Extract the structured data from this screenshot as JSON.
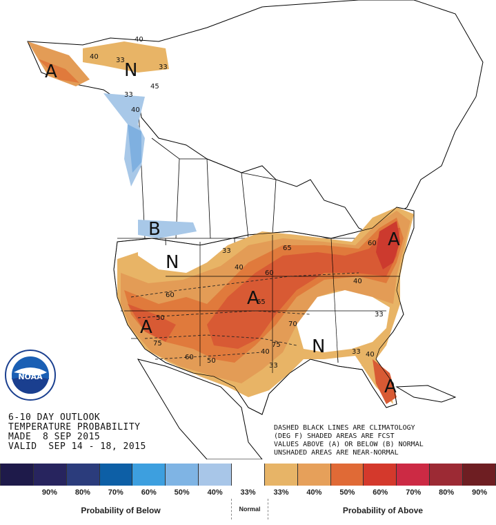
{
  "map": {
    "region_letters": {
      "alaska_above": "A",
      "alaska_normal": "N",
      "northwest_below": "B",
      "northern_plains_normal": "N",
      "southwest_above": "A",
      "central_above": "A",
      "southeast_normal": "N",
      "northeast_above": "A",
      "florida_above": "A"
    },
    "contour_labels": {
      "ak_40a": "40",
      "ak_40b": "40",
      "ak_33a": "33",
      "ak_33b": "33",
      "ak_45": "45",
      "ak_below_33": "33",
      "ak_below_40": "40",
      "plains_33": "33",
      "plains_40": "40",
      "plains_60": "60",
      "ne_65": "65",
      "ne_60": "60",
      "ne_40": "40",
      "sw_50": "50",
      "sw_60": "60",
      "sw_50b": "50",
      "c_65": "65",
      "c_70": "70",
      "c_75": "75",
      "c_40": "40",
      "se_33": "33",
      "se_33b": "33",
      "se_40": "40",
      "tx_33": "33",
      "clim_60": "60",
      "clim_75": "75"
    },
    "colors": {
      "above_33": "#e8b466",
      "above_40": "#e39c56",
      "above_50": "#e07a3c",
      "above_60": "#d85a34",
      "above_70": "#cc3a2e",
      "below_33": "#a8c8e8",
      "below_40": "#7fb0e0"
    }
  },
  "outlook": {
    "line1": "6-10 DAY OUTLOOK",
    "line2": "TEMPERATURE PROBABILITY",
    "line3": "MADE  8 SEP 2015",
    "line4": "VALID  SEP 14 - 18, 2015"
  },
  "legend_note": {
    "line1": "DASHED BLACK LINES ARE CLIMATOLOGY",
    "line2": "(DEG F) SHADED AREAS ARE FCST",
    "line3": "VALUES ABOVE (A) OR BELOW (B) NORMAL",
    "line4": "UNSHADED AREAS ARE NEAR-NORMAL"
  },
  "legend": {
    "colors": [
      "#1e1a4a",
      "#27245e",
      "#2b3c7c",
      "#0d5fa6",
      "#3d9fdf",
      "#7fb4e4",
      "#a8c6e8",
      "#ffffff",
      "#e7b467",
      "#e6a05a",
      "#e06a36",
      "#d4392c",
      "#cc2a44",
      "#9c2a34",
      "#6e1e22"
    ],
    "labels": [
      "90%",
      "80%",
      "70%",
      "60%",
      "50%",
      "40%",
      "33%",
      "33%",
      "40%",
      "50%",
      "60%",
      "70%",
      "80%",
      "90%"
    ],
    "below_title": "Probability of Below",
    "normal_title": "Normal",
    "above_title": "Probability of Above"
  },
  "logo": {
    "text": "NOAA",
    "icon": "noaa-logo-icon"
  }
}
